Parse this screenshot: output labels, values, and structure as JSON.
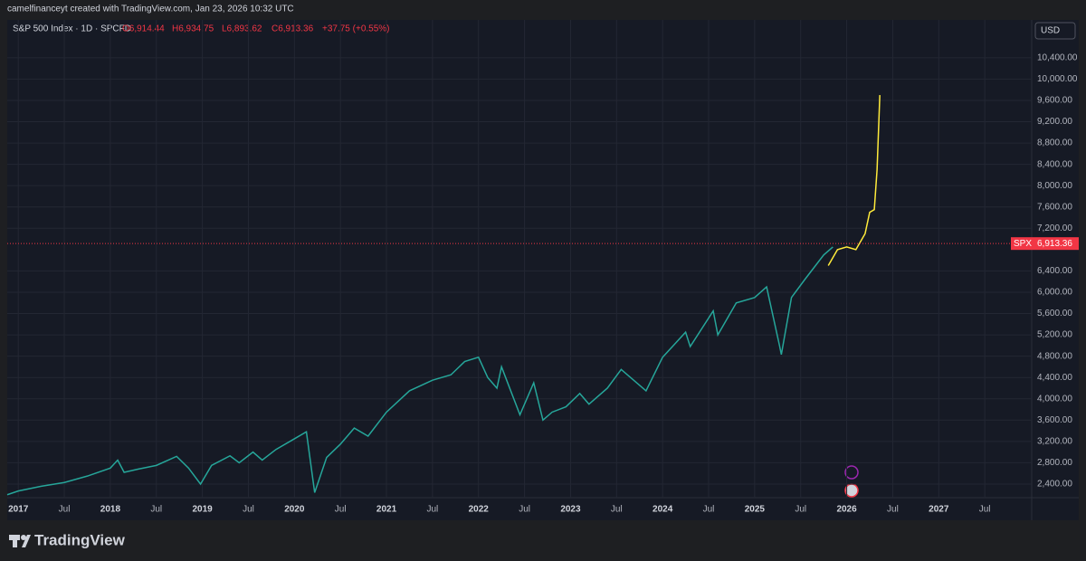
{
  "header": {
    "credit": "camelfinanceyt created with TradingView.com, Jan 23, 2026 10:32 UTC"
  },
  "footer": {
    "brand": "TradingView"
  },
  "chart_data": {
    "type": "line",
    "title": "S&P 500 Index · 1D · SPCFD",
    "ohlc": [
      "O6,914.44",
      "H6,934.75",
      "L6,893.62",
      "C6,913.36"
    ],
    "change": "+37.75 (+0.55%)",
    "currency": "USD",
    "last_price": {
      "name": "SPX",
      "value": 6913.36,
      "value_label": "6,913.36",
      "color": "#f23645"
    },
    "xlim": [
      2016.88,
      2028.01
    ],
    "ylim": [
      2145,
      10720
    ],
    "xticks": [
      {
        "value": 2017,
        "label": "2017"
      },
      {
        "value": 2017.5,
        "label": "Jul"
      },
      {
        "value": 2018,
        "label": "2018"
      },
      {
        "value": 2018.5,
        "label": "Jul"
      },
      {
        "value": 2019,
        "label": "2019"
      },
      {
        "value": 2019.5,
        "label": "Jul"
      },
      {
        "value": 2020,
        "label": "2020"
      },
      {
        "value": 2020.5,
        "label": "Jul"
      },
      {
        "value": 2021,
        "label": "2021"
      },
      {
        "value": 2021.5,
        "label": "Jul"
      },
      {
        "value": 2022,
        "label": "2022"
      },
      {
        "value": 2022.5,
        "label": "Jul"
      },
      {
        "value": 2023,
        "label": "2023"
      },
      {
        "value": 2023.5,
        "label": "Jul"
      },
      {
        "value": 2024,
        "label": "2024"
      },
      {
        "value": 2024.5,
        "label": "Jul"
      },
      {
        "value": 2025,
        "label": "2025"
      },
      {
        "value": 2025.5,
        "label": "Jul"
      },
      {
        "value": 2026,
        "label": "2026"
      },
      {
        "value": 2026.5,
        "label": "Jul"
      },
      {
        "value": 2027,
        "label": "2027"
      },
      {
        "value": 2027.5,
        "label": "Jul"
      }
    ],
    "yticks": [
      {
        "value": 2400,
        "label": "2,400.00"
      },
      {
        "value": 2800,
        "label": "2,800.00"
      },
      {
        "value": 3200,
        "label": "3,200.00"
      },
      {
        "value": 3600,
        "label": "3,600.00"
      },
      {
        "value": 4000,
        "label": "4,000.00"
      },
      {
        "value": 4400,
        "label": "4,400.00"
      },
      {
        "value": 4800,
        "label": "4,800.00"
      },
      {
        "value": 5200,
        "label": "5,200.00"
      },
      {
        "value": 5600,
        "label": "5,600.00"
      },
      {
        "value": 6000,
        "label": "6,000.00"
      },
      {
        "value": 6400,
        "label": "6,400.00"
      },
      {
        "value": 7200,
        "label": "7,200.00"
      },
      {
        "value": 7600,
        "label": "7,600.00"
      },
      {
        "value": 8000,
        "label": "8,000.00"
      },
      {
        "value": 8400,
        "label": "8,400.00"
      },
      {
        "value": 8800,
        "label": "8,800.00"
      },
      {
        "value": 9200,
        "label": "9,200.00"
      },
      {
        "value": 9600,
        "label": "9,600.00"
      },
      {
        "value": 10000,
        "label": "10,000.00"
      },
      {
        "value": 10400,
        "label": "10,400.00"
      }
    ],
    "grid": true,
    "series": [
      {
        "color": "#26a69a",
        "x": [
          2016.88,
          2017.0,
          2017.25,
          2017.5,
          2017.75,
          2018.0,
          2018.08,
          2018.15,
          2018.3,
          2018.5,
          2018.72,
          2018.85,
          2018.98,
          2019.1,
          2019.3,
          2019.4,
          2019.55,
          2019.65,
          2019.8,
          2020.0,
          2020.13,
          2020.22,
          2020.35,
          2020.5,
          2020.65,
          2020.8,
          2021.0,
          2021.25,
          2021.5,
          2021.7,
          2021.85,
          2022.0,
          2022.1,
          2022.2,
          2022.25,
          2022.45,
          2022.6,
          2022.7,
          2022.8,
          2022.95,
          2023.1,
          2023.2,
          2023.4,
          2023.55,
          2023.82,
          2024.0,
          2024.25,
          2024.3,
          2024.55,
          2024.6,
          2024.8,
          2025.0,
          2025.13,
          2025.27,
          2025.29,
          2025.4,
          2025.55,
          2025.75,
          2025.85
        ],
        "values": [
          2200,
          2270,
          2360,
          2430,
          2550,
          2700,
          2850,
          2620,
          2680,
          2750,
          2920,
          2700,
          2400,
          2750,
          2930,
          2800,
          3000,
          2850,
          3050,
          3250,
          3380,
          2240,
          2900,
          3150,
          3450,
          3300,
          3750,
          4150,
          4350,
          4450,
          4700,
          4780,
          4400,
          4200,
          4600,
          3700,
          4300,
          3600,
          3750,
          3850,
          4100,
          3900,
          4200,
          4550,
          4150,
          4780,
          5250,
          4980,
          5650,
          5200,
          5800,
          5900,
          6100,
          5000,
          4830,
          5900,
          6250,
          6700,
          6850
        ]
      },
      {
        "color": "#ffeb3b",
        "x": [
          2025.8,
          2025.9,
          2026.0,
          2026.1,
          2026.2,
          2026.25,
          2026.3,
          2026.33,
          2026.36
        ],
        "values": [
          6500,
          6800,
          6850,
          6800,
          7100,
          7500,
          7550,
          8300,
          9700
        ]
      }
    ]
  }
}
